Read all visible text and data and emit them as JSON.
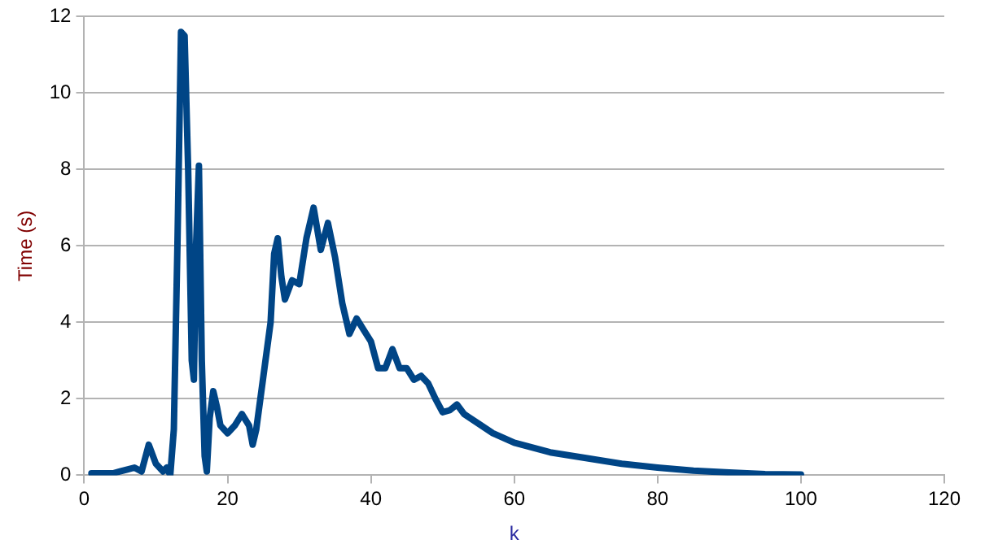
{
  "chart_data": {
    "type": "line",
    "xlabel": "k",
    "ylabel": "Time (s)",
    "xlim": [
      0,
      120
    ],
    "xticks": [
      0,
      20,
      40,
      60,
      80,
      100,
      120
    ],
    "ylim": [
      0,
      12
    ],
    "yticks": [
      0,
      2,
      4,
      6,
      8,
      10,
      12
    ],
    "grid": "y",
    "marker": "none",
    "x": [
      1,
      2,
      4,
      5,
      6,
      7,
      8,
      9,
      10,
      11,
      11.5,
      12,
      12.5,
      13,
      13.5,
      14,
      14.5,
      15,
      15.3,
      15.6,
      16,
      16.4,
      16.8,
      17.1,
      17.5,
      18,
      18.5,
      19,
      20,
      21,
      22,
      23,
      23.5,
      24,
      25,
      26,
      26.5,
      27,
      27.5,
      28,
      29,
      30,
      31,
      32,
      33,
      34,
      35,
      36,
      37,
      38,
      39,
      40,
      41,
      42,
      43,
      44,
      45,
      46,
      47,
      48,
      49,
      50,
      51,
      52,
      53,
      55,
      57,
      60,
      65,
      70,
      75,
      80,
      85,
      90,
      95,
      100
    ],
    "series": [
      {
        "color": "#004586",
        "values": [
          0.05,
          0.05,
          0.05,
          0.1,
          0.15,
          0.2,
          0.1,
          0.8,
          0.3,
          0.1,
          0.2,
          0,
          1.2,
          6,
          11.6,
          11.5,
          8,
          3,
          2.5,
          6,
          8.1,
          3,
          0.5,
          0.1,
          1.5,
          2.2,
          1.8,
          1.3,
          1.1,
          1.3,
          1.6,
          1.3,
          0.8,
          1.2,
          2.6,
          4,
          5.8,
          6.2,
          5.2,
          4.6,
          5.1,
          5,
          6.2,
          7,
          5.9,
          6.6,
          5.7,
          4.5,
          3.7,
          4.1,
          3.8,
          3.5,
          2.8,
          2.8,
          3.3,
          2.8,
          2.8,
          2.5,
          2.6,
          2.4,
          2,
          1.65,
          1.7,
          1.85,
          1.6,
          1.35,
          1.1,
          0.85,
          0.6,
          0.45,
          0.3,
          0.2,
          0.12,
          0.07,
          0.03,
          0.02
        ]
      }
    ]
  }
}
